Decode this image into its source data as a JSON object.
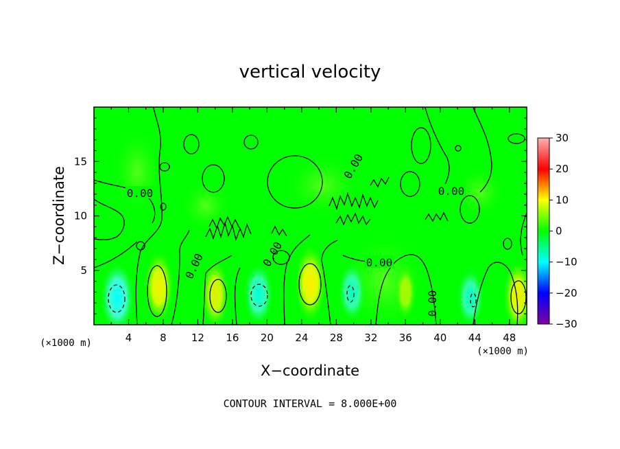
{
  "chart_data": {
    "type": "heatmap",
    "title": "vertical velocity",
    "xlabel": "X−coordinate",
    "ylabel": "Z−coordinate",
    "x_unit": "(×1000 m)",
    "z_unit": "(×1000 m)",
    "xlim": [
      0,
      50
    ],
    "ylim": [
      0,
      20
    ],
    "x_ticks": [
      4,
      8,
      12,
      16,
      20,
      24,
      28,
      32,
      36,
      40,
      44,
      48
    ],
    "x_tick_labels": [
      "4",
      "8",
      "12",
      "16",
      "20",
      "24",
      "28",
      "32",
      "36",
      "40",
      "44",
      "48"
    ],
    "y_ticks": [
      5,
      10,
      15
    ],
    "y_tick_labels": [
      "5",
      "10",
      "15"
    ],
    "colorbar": {
      "min": -30,
      "max": 30,
      "ticks": [
        30,
        20,
        10,
        0,
        -10,
        -20,
        -30
      ],
      "tick_labels": [
        "30",
        "20",
        "10",
        "0",
        "−10",
        "−20",
        "−30"
      ],
      "colors": [
        "#8000a0",
        "#0000ff",
        "#00ffff",
        "#00ff00",
        "#ffff00",
        "#ff0000",
        "#ffb0b0"
      ]
    },
    "contour_interval_text": "CONTOUR INTERVAL = 8.000E+00",
    "contour_labels": [
      "0.00",
      "0.00",
      "0.00",
      "0.00",
      "0.00",
      "0.00",
      "0.00"
    ],
    "updrafts": [
      {
        "x": 7.5,
        "z": 3.5,
        "w": 9
      },
      {
        "x": 14.0,
        "z": 2.8,
        "w": 8
      },
      {
        "x": 25.0,
        "z": 3.8,
        "w": 10
      },
      {
        "x": 36.0,
        "z": 3.0,
        "w": 4
      },
      {
        "x": 49.0,
        "z": 2.6,
        "w": 9
      }
    ],
    "downdrafts": [
      {
        "x": 2.7,
        "z": 2.5,
        "w": -8
      },
      {
        "x": 19.0,
        "z": 2.8,
        "w": -6
      },
      {
        "x": 29.8,
        "z": 3.0,
        "w": -5
      },
      {
        "x": 43.5,
        "z": 2.5,
        "w": -5
      }
    ]
  }
}
